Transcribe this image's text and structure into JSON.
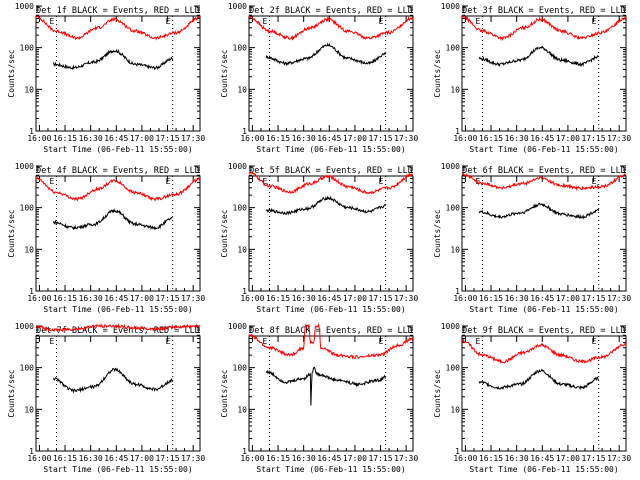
{
  "colors": {
    "events": "#000000",
    "lld": "#ff0000",
    "background": "#ffffff"
  },
  "chart_data": [
    {
      "type": "line",
      "title": "Det 1f BLACK = Events, RED = LLD",
      "ylabel": "Counts/sec",
      "xlabel": "Start Time (06-Feb-11 15:55:00)",
      "yscale": "log",
      "ylim": [
        1,
        1000
      ],
      "xlim": [
        "15:58",
        "17:34"
      ],
      "xticks": [
        "16:00",
        "16:15",
        "16:30",
        "16:45",
        "17:00",
        "17:15",
        "17:30"
      ],
      "yticks": [
        "1",
        "10",
        "100",
        "1000"
      ],
      "markers": [
        "16:10",
        "17:18"
      ],
      "marker_label": "E",
      "series": [
        {
          "color": "#000000",
          "x": [
            "16:08",
            "16:20",
            "16:32",
            "16:44",
            "16:56",
            "17:08",
            "17:18"
          ],
          "values": [
            40,
            33,
            45,
            85,
            40,
            33,
            55
          ]
        },
        {
          "color": "#ff0000",
          "x": [
            "15:58",
            "16:10",
            "16:22",
            "16:34",
            "16:44",
            "16:56",
            "17:08",
            "17:20",
            "17:34"
          ],
          "values": [
            550,
            250,
            170,
            300,
            480,
            250,
            170,
            230,
            520
          ]
        }
      ]
    },
    {
      "type": "line",
      "title": "Det 2f BLACK = Events, RED = LLD",
      "ylabel": "Counts/sec",
      "xlabel": "Start Time (06-Feb-11 15:55:00)",
      "yscale": "log",
      "ylim": [
        1,
        1000
      ],
      "xlim": [
        "15:58",
        "17:34"
      ],
      "xticks": [
        "16:00",
        "16:15",
        "16:30",
        "16:45",
        "17:00",
        "17:15",
        "17:30"
      ],
      "yticks": [
        "1",
        "10",
        "100",
        "1000"
      ],
      "markers": [
        "16:10",
        "17:18"
      ],
      "marker_label": "E",
      "series": [
        {
          "color": "#000000",
          "x": [
            "16:08",
            "16:20",
            "16:32",
            "16:44",
            "16:56",
            "17:08",
            "17:18"
          ],
          "values": [
            60,
            42,
            55,
            115,
            55,
            42,
            70
          ]
        },
        {
          "color": "#ff0000",
          "x": [
            "15:58",
            "16:10",
            "16:22",
            "16:34",
            "16:44",
            "16:56",
            "17:08",
            "17:20",
            "17:34"
          ],
          "values": [
            550,
            250,
            170,
            300,
            480,
            250,
            170,
            230,
            520
          ]
        }
      ]
    },
    {
      "type": "line",
      "title": "Det 3f BLACK = Events, RED = LLD",
      "ylabel": "Counts/sec",
      "xlabel": "Start Time (06-Feb-11 15:55:00)",
      "yscale": "log",
      "ylim": [
        1,
        1000
      ],
      "xlim": [
        "15:58",
        "17:34"
      ],
      "xticks": [
        "16:00",
        "16:15",
        "16:30",
        "16:45",
        "17:00",
        "17:15",
        "17:30"
      ],
      "yticks": [
        "1",
        "10",
        "100",
        "1000"
      ],
      "markers": [
        "16:10",
        "17:18"
      ],
      "marker_label": "E",
      "series": [
        {
          "color": "#000000",
          "x": [
            "16:08",
            "16:20",
            "16:32",
            "16:44",
            "16:56",
            "17:08",
            "17:18"
          ],
          "values": [
            55,
            40,
            50,
            100,
            50,
            40,
            60
          ]
        },
        {
          "color": "#ff0000",
          "x": [
            "15:58",
            "16:10",
            "16:22",
            "16:34",
            "16:44",
            "16:56",
            "17:08",
            "17:20",
            "17:34"
          ],
          "values": [
            550,
            250,
            170,
            300,
            480,
            250,
            170,
            230,
            520
          ]
        }
      ]
    },
    {
      "type": "line",
      "title": "Det 4f BLACK = Events, RED = LLD",
      "ylabel": "Counts/sec",
      "xlabel": "Start Time (06-Feb-11 15:55:00)",
      "yscale": "log",
      "ylim": [
        1,
        1000
      ],
      "xlim": [
        "15:58",
        "17:34"
      ],
      "xticks": [
        "16:00",
        "16:15",
        "16:30",
        "16:45",
        "17:00",
        "17:15",
        "17:30"
      ],
      "yticks": [
        "1",
        "10",
        "100",
        "1000"
      ],
      "markers": [
        "16:10",
        "17:18"
      ],
      "marker_label": "E",
      "series": [
        {
          "color": "#000000",
          "x": [
            "16:08",
            "16:20",
            "16:32",
            "16:44",
            "16:56",
            "17:08",
            "17:18"
          ],
          "values": [
            45,
            33,
            40,
            85,
            40,
            33,
            55
          ]
        },
        {
          "color": "#ff0000",
          "x": [
            "15:58",
            "16:10",
            "16:22",
            "16:34",
            "16:44",
            "16:56",
            "17:08",
            "17:20",
            "17:34"
          ],
          "values": [
            500,
            230,
            160,
            280,
            440,
            230,
            160,
            210,
            480
          ]
        }
      ]
    },
    {
      "type": "line",
      "title": "Det 5f BLACK = Events, RED = LLD",
      "ylabel": "Counts/sec",
      "xlabel": "Start Time (06-Feb-11 15:55:00)",
      "yscale": "log",
      "ylim": [
        1,
        1000
      ],
      "xlim": [
        "15:58",
        "17:34"
      ],
      "xticks": [
        "16:00",
        "16:15",
        "16:30",
        "16:45",
        "17:00",
        "17:15",
        "17:30"
      ],
      "yticks": [
        "1",
        "10",
        "100",
        "1000"
      ],
      "markers": [
        "16:10",
        "17:18"
      ],
      "marker_label": "E",
      "series": [
        {
          "color": "#000000",
          "x": [
            "16:08",
            "16:20",
            "16:32",
            "16:44",
            "16:56",
            "17:08",
            "17:18"
          ],
          "values": [
            85,
            75,
            95,
            170,
            100,
            80,
            110
          ]
        },
        {
          "color": "#ff0000",
          "x": [
            "15:58",
            "16:10",
            "16:22",
            "16:34",
            "16:44",
            "16:56",
            "17:08",
            "17:20",
            "17:34"
          ],
          "values": [
            700,
            330,
            240,
            380,
            560,
            320,
            230,
            300,
            650
          ]
        }
      ]
    },
    {
      "type": "line",
      "title": "Det 6f BLACK = Events, RED = LLD",
      "ylabel": "Counts/sec",
      "xlabel": "Start Time (06-Feb-11 15:55:00)",
      "yscale": "log",
      "ylim": [
        1,
        1000
      ],
      "xlim": [
        "15:58",
        "17:34"
      ],
      "xticks": [
        "16:00",
        "16:15",
        "16:30",
        "16:45",
        "17:00",
        "17:15",
        "17:30"
      ],
      "yticks": [
        "1",
        "10",
        "100",
        "1000"
      ],
      "markers": [
        "16:10",
        "17:18"
      ],
      "marker_label": "E",
      "series": [
        {
          "color": "#000000",
          "x": [
            "16:08",
            "16:20",
            "16:32",
            "16:44",
            "16:56",
            "17:08",
            "17:18"
          ],
          "values": [
            80,
            60,
            75,
            120,
            70,
            60,
            85
          ]
        },
        {
          "color": "#ff0000",
          "x": [
            "15:58",
            "16:10",
            "16:22",
            "16:34",
            "16:44",
            "16:56",
            "17:08",
            "17:20",
            "17:34"
          ],
          "values": [
            650,
            380,
            300,
            380,
            520,
            340,
            290,
            320,
            600
          ]
        }
      ]
    },
    {
      "type": "line",
      "title": "Det 7f BLACK = Events, RED = LLD",
      "ylabel": "Counts/sec",
      "xlabel": "Start Time (06-Feb-11 15:55:00)",
      "yscale": "log",
      "ylim": [
        1,
        1000
      ],
      "xlim": [
        "15:58",
        "17:34"
      ],
      "xticks": [
        "16:00",
        "16:15",
        "16:30",
        "16:45",
        "17:00",
        "17:15",
        "17:30"
      ],
      "yticks": [
        "1",
        "10",
        "100",
        "1000"
      ],
      "markers": [
        "16:10",
        "17:18"
      ],
      "marker_label": "E",
      "series": [
        {
          "color": "#000000",
          "x": [
            "16:08",
            "16:20",
            "16:32",
            "16:44",
            "16:56",
            "17:08",
            "17:18"
          ],
          "values": [
            55,
            28,
            35,
            90,
            40,
            30,
            50
          ]
        },
        {
          "color": "#ff0000",
          "x": [
            "15:58",
            "16:10",
            "16:22",
            "16:34",
            "16:44",
            "16:56",
            "17:08",
            "17:20",
            "17:34"
          ],
          "values": [
            950,
            800,
            850,
            1000,
            1000,
            900,
            850,
            950,
            1000
          ]
        }
      ]
    },
    {
      "type": "line",
      "title": "Det 8f BLACK = Events, RED = LLD",
      "ylabel": "Counts/sec",
      "xlabel": "Start Time (06-Feb-11 15:55:00)",
      "yscale": "log",
      "ylim": [
        1,
        1000
      ],
      "xlim": [
        "15:58",
        "17:34"
      ],
      "xticks": [
        "16:00",
        "16:15",
        "16:30",
        "16:45",
        "17:00",
        "17:15",
        "17:30"
      ],
      "yticks": [
        "1",
        "10",
        "100",
        "1000"
      ],
      "markers": [
        "16:10",
        "17:18"
      ],
      "marker_label": "E",
      "series": [
        {
          "color": "#000000",
          "x": [
            "16:08",
            "16:20",
            "16:30",
            "16:34",
            "16:34",
            "16:35",
            "16:36",
            "16:38",
            "16:50",
            "17:02",
            "17:14",
            "17:18"
          ],
          "values": [
            80,
            45,
            55,
            70,
            9,
            80,
            100,
            70,
            50,
            40,
            50,
            60
          ]
        },
        {
          "color": "#ff0000",
          "x": [
            "15:58",
            "16:10",
            "16:22",
            "16:30",
            "16:31",
            "16:33",
            "16:34",
            "16:36",
            "16:37",
            "16:39",
            "16:40",
            "16:50",
            "17:02",
            "17:14",
            "17:26",
            "17:34"
          ],
          "values": [
            600,
            300,
            200,
            300,
            1000,
            1000,
            400,
            400,
            1000,
            1000,
            300,
            200,
            180,
            200,
            350,
            500
          ]
        }
      ]
    },
    {
      "type": "line",
      "title": "Det 9f BLACK = Events, RED = LLD",
      "ylabel": "Counts/sec",
      "xlabel": "Start Time (06-Feb-11 15:55:00)",
      "yscale": "log",
      "ylim": [
        1,
        1000
      ],
      "xlim": [
        "15:58",
        "17:34"
      ],
      "xticks": [
        "16:00",
        "16:15",
        "16:30",
        "16:45",
        "17:00",
        "17:15",
        "17:30"
      ],
      "yticks": [
        "1",
        "10",
        "100",
        "1000"
      ],
      "markers": [
        "16:10",
        "17:18"
      ],
      "marker_label": "E",
      "series": [
        {
          "color": "#000000",
          "x": [
            "16:08",
            "16:20",
            "16:32",
            "16:44",
            "16:56",
            "17:08",
            "17:18"
          ],
          "values": [
            45,
            33,
            40,
            85,
            40,
            33,
            55
          ]
        },
        {
          "color": "#ff0000",
          "x": [
            "15:58",
            "16:10",
            "16:22",
            "16:34",
            "16:44",
            "16:56",
            "17:08",
            "17:20",
            "17:34"
          ],
          "values": [
            450,
            200,
            140,
            230,
            350,
            200,
            140,
            180,
            380
          ]
        }
      ]
    }
  ]
}
